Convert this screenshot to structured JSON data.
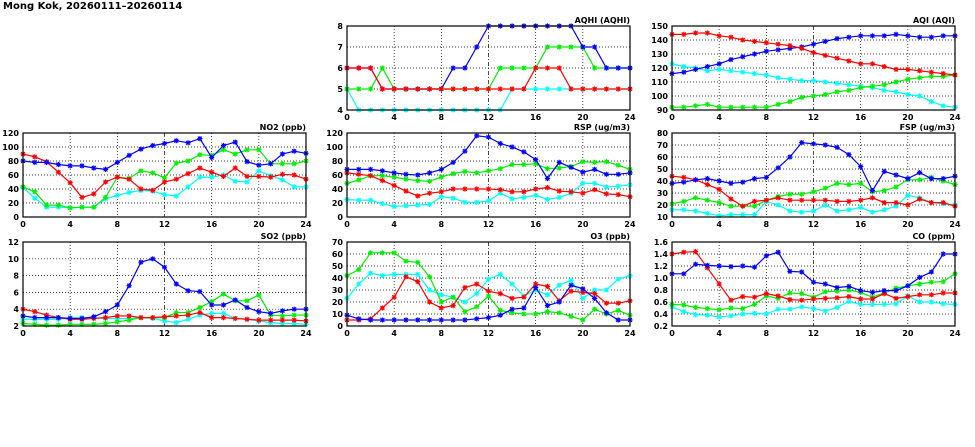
{
  "title": "Mong Kok, 20260111–20260114",
  "chart_data": [
    {
      "id": "aqhi",
      "type": "line",
      "title": "AQHI (AQHI)",
      "ylim": [
        4,
        8
      ],
      "ystep": 1,
      "ydec": 0,
      "xlim": [
        0,
        24
      ],
      "xticks": [
        0,
        4,
        8,
        12,
        16,
        20,
        24
      ],
      "series": [
        {
          "color": "#00ffff",
          "values": [
            5,
            4,
            4,
            4,
            4,
            4,
            4,
            4,
            4,
            4,
            4,
            4,
            4,
            4,
            5,
            5,
            5,
            5,
            5,
            5,
            5,
            5,
            5,
            5,
            5
          ]
        },
        {
          "color": "#00ee00",
          "values": [
            5,
            5,
            5,
            6,
            5,
            5,
            5,
            5,
            5,
            5,
            5,
            5,
            5,
            6,
            6,
            6,
            6,
            7,
            7,
            7,
            7,
            6,
            6,
            6,
            6
          ]
        },
        {
          "color": "#0000ff",
          "values": [
            6,
            6,
            6,
            5,
            5,
            5,
            5,
            5,
            5,
            6,
            6,
            7,
            8,
            8,
            8,
            8,
            8,
            8,
            8,
            8,
            7,
            7,
            6,
            6,
            6
          ]
        },
        {
          "color": "#ff0000",
          "values": [
            6,
            6,
            6,
            5,
            5,
            5,
            5,
            5,
            5,
            5,
            5,
            5,
            5,
            5,
            5,
            5,
            6,
            6,
            6,
            5,
            5,
            5,
            5,
            5,
            5
          ]
        }
      ]
    },
    {
      "id": "aqi",
      "type": "line",
      "title": "AQI (AQI)",
      "ylim": [
        90,
        150
      ],
      "ystep": 10,
      "ydec": 0,
      "xlim": [
        0,
        24
      ],
      "xticks": [
        0,
        4,
        8,
        12,
        16,
        20,
        24
      ],
      "series": [
        {
          "color": "#00ffff",
          "values": [
            123,
            121,
            120,
            118,
            119,
            118,
            117,
            116,
            115,
            113,
            112,
            111,
            111,
            110,
            109,
            108,
            107,
            106,
            104,
            103,
            101,
            100,
            96,
            93,
            92
          ]
        },
        {
          "color": "#00ee00",
          "values": [
            92,
            92,
            93,
            94,
            92,
            92,
            92,
            92,
            92,
            94,
            96,
            99,
            100,
            101,
            103,
            104,
            106,
            107,
            108,
            110,
            112,
            113,
            114,
            114,
            115
          ]
        },
        {
          "color": "#0000ff",
          "values": [
            116,
            117,
            119,
            121,
            123,
            126,
            128,
            130,
            132,
            133,
            134,
            135,
            137,
            139,
            141,
            142,
            143,
            143,
            143,
            144,
            143,
            142,
            142,
            143,
            143
          ]
        },
        {
          "color": "#ff0000",
          "values": [
            144,
            144,
            145,
            145,
            143,
            142,
            140,
            139,
            138,
            137,
            136,
            134,
            131,
            129,
            127,
            125,
            123,
            123,
            121,
            119,
            119,
            118,
            117,
            116,
            115
          ]
        }
      ]
    },
    {
      "id": "no2",
      "type": "line",
      "title": "NO2 (ppb)",
      "ylim": [
        0,
        120
      ],
      "ystep": 20,
      "ydec": 0,
      "xlim": [
        0,
        24
      ],
      "xticks": [
        0,
        4,
        8,
        12,
        16,
        20,
        24
      ],
      "series": [
        {
          "color": "#00ffff",
          "values": [
            42,
            27,
            14,
            14,
            13,
            14,
            14,
            26,
            31,
            35,
            38,
            37,
            32,
            30,
            43,
            57,
            57,
            60,
            51,
            50,
            66,
            59,
            53,
            43,
            43
          ]
        },
        {
          "color": "#00ee00",
          "values": [
            43,
            36,
            17,
            17,
            13,
            14,
            14,
            28,
            57,
            55,
            66,
            63,
            56,
            77,
            80,
            89,
            88,
            96,
            90,
            96,
            96,
            76,
            76,
            76,
            80
          ]
        },
        {
          "color": "#ff0000",
          "values": [
            90,
            86,
            79,
            64,
            49,
            28,
            33,
            50,
            57,
            54,
            40,
            38,
            50,
            54,
            62,
            70,
            64,
            58,
            70,
            58,
            58,
            57,
            61,
            60,
            54
          ]
        },
        {
          "color": "#0000ff",
          "values": [
            80,
            78,
            78,
            75,
            73,
            73,
            70,
            68,
            78,
            88,
            97,
            102,
            105,
            109,
            106,
            112,
            85,
            102,
            107,
            79,
            74,
            76,
            90,
            94,
            91
          ]
        }
      ]
    },
    {
      "id": "rsp",
      "type": "line",
      "title": "RSP (ug/m3)",
      "ylim": [
        0,
        120
      ],
      "ystep": 20,
      "ydec": 0,
      "xlim": [
        0,
        24
      ],
      "xticks": [
        0,
        4,
        8,
        12,
        16,
        20,
        24
      ],
      "series": [
        {
          "color": "#00ffff",
          "values": [
            25,
            24,
            24,
            19,
            15,
            16,
            17,
            18,
            29,
            27,
            21,
            21,
            23,
            34,
            26,
            28,
            31,
            25,
            28,
            34,
            48,
            48,
            43,
            44,
            46
          ]
        },
        {
          "color": "#00ee00",
          "values": [
            48,
            53,
            59,
            59,
            57,
            54,
            52,
            51,
            57,
            62,
            65,
            63,
            66,
            69,
            75,
            75,
            76,
            69,
            70,
            72,
            79,
            78,
            79,
            74,
            68
          ]
        },
        {
          "color": "#ff0000",
          "values": [
            63,
            61,
            59,
            52,
            45,
            37,
            30,
            34,
            36,
            40,
            40,
            40,
            40,
            39,
            36,
            36,
            40,
            42,
            37,
            36,
            34,
            39,
            33,
            32,
            29
          ]
        },
        {
          "color": "#0000ff",
          "values": [
            68,
            68,
            68,
            66,
            63,
            61,
            60,
            63,
            68,
            78,
            94,
            116,
            114,
            105,
            100,
            93,
            82,
            55,
            78,
            71,
            64,
            68,
            61,
            61,
            63
          ]
        }
      ]
    },
    {
      "id": "fsp",
      "type": "line",
      "title": "FSP (ug/m3)",
      "ylim": [
        10,
        80
      ],
      "ystep": 10,
      "ydec": 0,
      "xlim": [
        0,
        24
      ],
      "xticks": [
        0,
        4,
        8,
        12,
        16,
        20,
        24
      ],
      "series": [
        {
          "color": "#00ffff",
          "values": [
            16,
            16,
            15,
            13,
            11,
            12,
            12,
            12,
            23,
            20,
            15,
            14,
            15,
            20,
            15,
            16,
            18,
            14,
            16,
            19,
            28,
            26,
            22,
            21,
            20
          ]
        },
        {
          "color": "#00ee00",
          "values": [
            21,
            23,
            26,
            24,
            22,
            19,
            19,
            19,
            24,
            27,
            29,
            29,
            31,
            34,
            38,
            37,
            38,
            31,
            32,
            35,
            41,
            41,
            43,
            40,
            37
          ]
        },
        {
          "color": "#ff0000",
          "values": [
            44,
            43,
            41,
            37,
            33,
            25,
            19,
            23,
            24,
            26,
            24,
            24,
            24,
            24,
            23,
            23,
            24,
            26,
            22,
            22,
            20,
            25,
            22,
            22,
            19
          ]
        },
        {
          "color": "#0000ff",
          "values": [
            38,
            39,
            41,
            42,
            40,
            38,
            39,
            42,
            43,
            51,
            60,
            72,
            71,
            70,
            68,
            62,
            52,
            32,
            48,
            45,
            42,
            47,
            42,
            42,
            44
          ]
        }
      ]
    },
    {
      "id": "so2",
      "type": "line",
      "title": "SO2 (ppb)",
      "ylim": [
        2,
        12
      ],
      "ystep": 2,
      "ydec": 0,
      "xlim": [
        0,
        24
      ],
      "xticks": [
        0,
        4,
        8,
        12,
        16,
        20,
        24
      ],
      "series": [
        {
          "color": "#00ffff",
          "values": [
            2.8,
            2.8,
            2.8,
            2.8,
            3.0,
            3.0,
            3.0,
            2.9,
            2.9,
            2.9,
            3.0,
            2.9,
            2.6,
            2.4,
            2.8,
            3.3,
            3.5,
            3.5,
            2.9,
            2.8,
            2.6,
            2.4,
            2.3,
            2.3,
            2.2
          ]
        },
        {
          "color": "#00ee00",
          "values": [
            2.3,
            2.2,
            2.1,
            2.1,
            2.2,
            2.2,
            2.2,
            2.3,
            2.5,
            2.7,
            3.0,
            3.0,
            3.0,
            3.6,
            3.6,
            4.2,
            4.9,
            5.8,
            5.0,
            5.0,
            5.7,
            3.3,
            3.2,
            3.3,
            3.3
          ]
        },
        {
          "color": "#ff0000",
          "values": [
            4.0,
            3.7,
            3.3,
            3.0,
            2.8,
            2.8,
            2.9,
            3.0,
            3.2,
            3.2,
            3.0,
            3.0,
            3.1,
            3.2,
            3.3,
            3.6,
            3.0,
            3.0,
            2.9,
            2.8,
            2.7,
            2.7,
            2.7,
            2.7,
            2.6
          ]
        },
        {
          "color": "#0000ff",
          "values": [
            3.2,
            3.0,
            3.0,
            3.0,
            2.9,
            2.9,
            3.1,
            3.7,
            4.5,
            6.8,
            9.6,
            10.0,
            9.0,
            7.0,
            6.2,
            6.1,
            4.5,
            4.5,
            5.1,
            4.2,
            3.7,
            3.5,
            3.8,
            4.0,
            4.0
          ]
        }
      ]
    },
    {
      "id": "o3",
      "type": "line",
      "title": "O3 (ppb)",
      "ylim": [
        0,
        70
      ],
      "ystep": 10,
      "ydec": 0,
      "xlim": [
        0,
        24
      ],
      "xticks": [
        0,
        4,
        8,
        12,
        16,
        20,
        24
      ],
      "series": [
        {
          "color": "#00ffff",
          "values": [
            23,
            35,
            44,
            42,
            43,
            43,
            43,
            30,
            26,
            24,
            20,
            27,
            39,
            43,
            35,
            25,
            30,
            26,
            34,
            38,
            23,
            30,
            30,
            39,
            42
          ]
        },
        {
          "color": "#00ee00",
          "values": [
            42,
            47,
            61,
            61,
            61,
            54,
            53,
            41,
            20,
            24,
            12,
            16,
            25,
            13,
            11,
            10,
            10,
            12,
            11,
            8,
            5,
            14,
            10,
            13,
            9
          ]
        },
        {
          "color": "#ff0000",
          "values": [
            5,
            5,
            6,
            15,
            24,
            41,
            37,
            20,
            15,
            17,
            32,
            35,
            29,
            27,
            23,
            24,
            35,
            33,
            21,
            29,
            28,
            27,
            19,
            19,
            21
          ]
        },
        {
          "color": "#0000ff",
          "values": [
            9,
            6,
            5,
            5,
            5,
            5,
            5,
            5,
            5,
            5,
            5,
            6,
            7,
            9,
            14,
            15,
            32,
            17,
            20,
            34,
            31,
            23,
            11,
            5,
            5
          ]
        }
      ]
    },
    {
      "id": "co",
      "type": "line",
      "title": "CO (ppm)",
      "ylim": [
        0.2,
        1.6
      ],
      "ystep": 0.2,
      "ydec": 1,
      "xlim": [
        0,
        24
      ],
      "xticks": [
        0,
        4,
        8,
        12,
        16,
        20,
        24
      ],
      "series": [
        {
          "color": "#00ffff",
          "values": [
            0.52,
            0.44,
            0.39,
            0.38,
            0.35,
            0.37,
            0.4,
            0.41,
            0.4,
            0.48,
            0.48,
            0.52,
            0.49,
            0.45,
            0.51,
            0.61,
            0.56,
            0.56,
            0.56,
            0.57,
            0.7,
            0.6,
            0.6,
            0.57,
            0.56
          ]
        },
        {
          "color": "#00ee00",
          "values": [
            0.56,
            0.55,
            0.51,
            0.49,
            0.47,
            0.5,
            0.49,
            0.56,
            0.7,
            0.66,
            0.75,
            0.74,
            0.68,
            0.77,
            0.78,
            0.8,
            0.76,
            0.68,
            0.75,
            0.83,
            0.87,
            0.9,
            0.93,
            0.94,
            1.07
          ]
        },
        {
          "color": "#ff0000",
          "values": [
            1.4,
            1.43,
            1.44,
            1.17,
            0.9,
            0.63,
            0.69,
            0.68,
            0.74,
            0.7,
            0.64,
            0.63,
            0.65,
            0.66,
            0.67,
            0.69,
            0.65,
            0.65,
            0.74,
            0.66,
            0.69,
            0.72,
            0.72,
            0.75,
            0.75
          ]
        },
        {
          "color": "#0000ff",
          "values": [
            1.07,
            1.07,
            1.23,
            1.21,
            1.2,
            1.19,
            1.2,
            1.18,
            1.37,
            1.43,
            1.11,
            1.1,
            0.93,
            0.9,
            0.84,
            0.86,
            0.79,
            0.76,
            0.79,
            0.79,
            0.87,
            1.01,
            1.1,
            1.4,
            1.4
          ]
        }
      ]
    }
  ]
}
